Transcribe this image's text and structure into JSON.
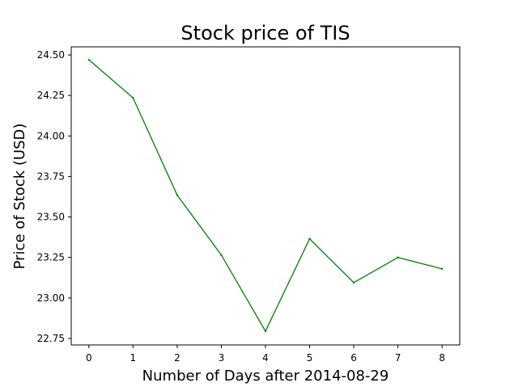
{
  "chart_data": {
    "type": "line",
    "title": "Stock price of TIS",
    "xlabel": "Number of Days after 2014-08-29",
    "ylabel": "Price of Stock (USD)",
    "x": [
      0,
      1,
      2,
      3,
      4,
      5,
      6,
      7,
      8
    ],
    "x_ticks": [
      "0",
      "1",
      "2",
      "3",
      "4",
      "5",
      "6",
      "7",
      "8"
    ],
    "y_ticks": [
      "22.75",
      "23.00",
      "23.25",
      "23.50",
      "23.75",
      "24.00",
      "24.25",
      "24.50"
    ],
    "xlim": [
      -0.4,
      8.4
    ],
    "ylim": [
      22.71,
      24.55
    ],
    "grid": false,
    "series": [
      {
        "color": "#008000",
        "values": [
          24.47,
          24.235,
          23.635,
          23.265,
          22.795,
          23.365,
          23.095,
          23.25,
          23.18
        ]
      }
    ]
  }
}
